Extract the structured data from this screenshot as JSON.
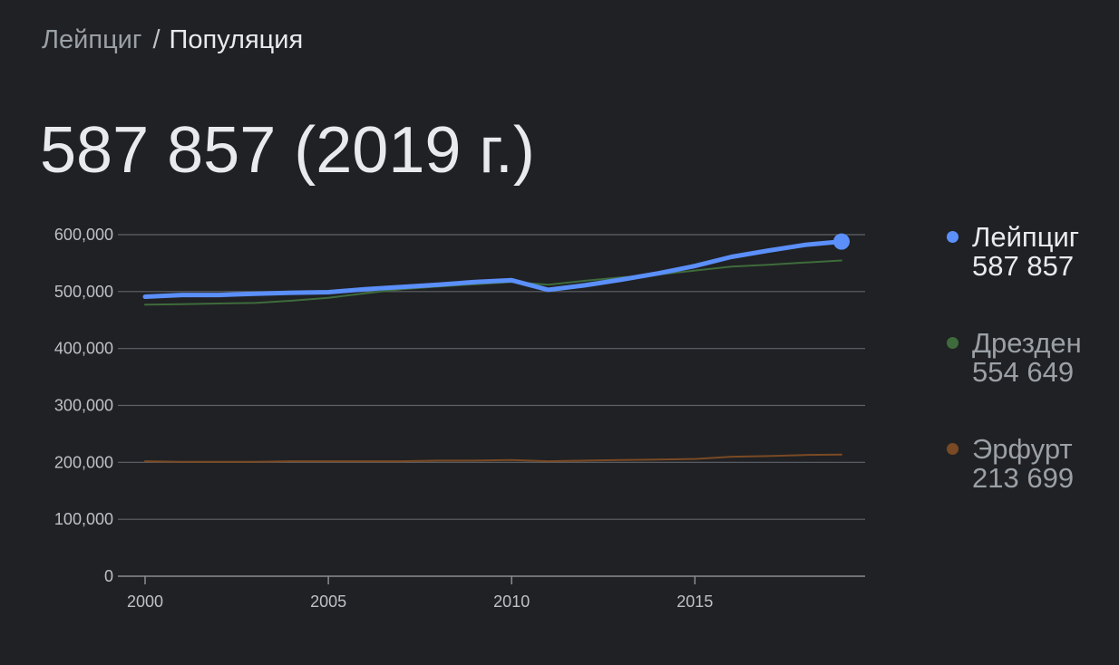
{
  "breadcrumb": {
    "parent": "Лейпциг",
    "separator": "/",
    "current": "Популяция"
  },
  "headline": "587 857 (2019 г.)",
  "legend": [
    {
      "name": "Лейпциг",
      "value": "587 857",
      "color": "#5b8ff9",
      "active": true
    },
    {
      "name": "Дрезден",
      "value": "554 649",
      "color": "#3e6b3c",
      "active": false
    },
    {
      "name": "Эрфурт",
      "value": "213 699",
      "color": "#7a4a24",
      "active": false
    }
  ],
  "chart_data": {
    "type": "line",
    "x": [
      2000,
      2001,
      2002,
      2003,
      2004,
      2005,
      2006,
      2007,
      2008,
      2009,
      2010,
      2011,
      2012,
      2013,
      2014,
      2015,
      2016,
      2017,
      2018,
      2019
    ],
    "xticks": [
      2000,
      2005,
      2010,
      2015
    ],
    "xtick_labels": [
      "2000",
      "2005",
      "2010",
      "2015"
    ],
    "yticks": [
      0,
      100000,
      200000,
      300000,
      400000,
      500000,
      600000
    ],
    "ytick_labels": [
      "0",
      "100,000",
      "200,000",
      "300,000",
      "400,000",
      "500,000",
      "600,000"
    ],
    "xlim": [
      2000,
      2019
    ],
    "ylim": [
      0,
      600000
    ],
    "grid": true,
    "legend_position": "right",
    "series": [
      {
        "name": "Лейпциг",
        "color": "#5b8ff9",
        "highlighted": true,
        "values": [
          491000,
          494000,
          494000,
          496000,
          498000,
          499000,
          504000,
          508000,
          512000,
          517000,
          520000,
          503000,
          511000,
          521000,
          532000,
          545000,
          561000,
          572000,
          582000,
          587857
        ]
      },
      {
        "name": "Дрезден",
        "color": "#3e6b3c",
        "highlighted": false,
        "values": [
          477000,
          478000,
          479000,
          480000,
          484000,
          489000,
          497000,
          504000,
          509000,
          513000,
          517000,
          512000,
          519000,
          525000,
          530000,
          537000,
          544000,
          547000,
          551000,
          554649
        ]
      },
      {
        "name": "Эрфурт",
        "color": "#7a4a24",
        "highlighted": false,
        "values": [
          202000,
          201000,
          201000,
          201000,
          202000,
          202000,
          202000,
          202000,
          203000,
          203000,
          204000,
          202000,
          203000,
          204000,
          205000,
          206000,
          210000,
          211000,
          213000,
          213699
        ]
      }
    ]
  }
}
